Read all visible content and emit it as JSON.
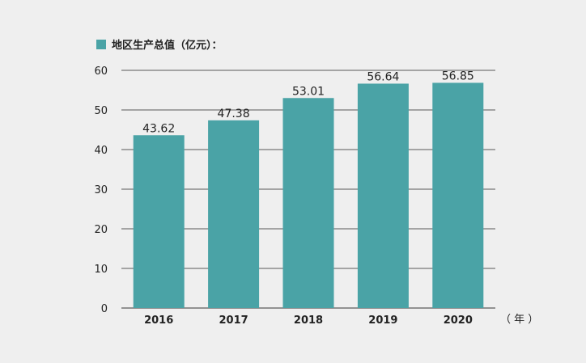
{
  "chart_data": {
    "type": "bar",
    "categories": [
      "2016",
      "2017",
      "2018",
      "2019",
      "2020"
    ],
    "series": [
      {
        "name": "地区生产总值（亿元）：",
        "values": [
          43.62,
          47.38,
          53.01,
          56.64,
          56.85
        ]
      }
    ],
    "data_labels": [
      "43.62",
      "47.38",
      "53.01",
      "56.64",
      "56.85"
    ],
    "ylim": [
      0,
      60
    ],
    "yticks": [
      0,
      10,
      20,
      30,
      40,
      50,
      60
    ],
    "x_unit_label": "（ 年 ）",
    "grid": true,
    "legend": "top-left",
    "colors": {
      "bar": "#4aa3a6",
      "grid": "#5a5a5a",
      "background": "#efefef"
    }
  }
}
